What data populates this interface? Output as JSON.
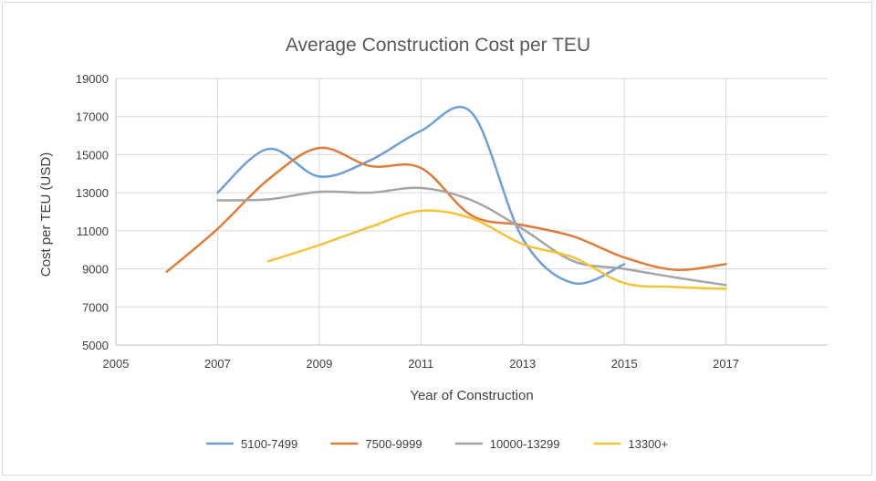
{
  "chart_data": {
    "type": "line",
    "title": "Average Construction Cost per TEU",
    "xlabel": "Year of Construction",
    "ylabel": "Cost per TEU (USD)",
    "xlim": [
      2005,
      2019
    ],
    "ylim": [
      5000,
      19000
    ],
    "x_ticks": [
      2005,
      2007,
      2009,
      2011,
      2013,
      2015,
      2017
    ],
    "y_ticks": [
      5000,
      7000,
      9000,
      11000,
      13000,
      15000,
      17000,
      19000
    ],
    "grid": "vertical and horizontal major gridlines",
    "legend_position": "bottom",
    "series": [
      {
        "name": "5100-7499",
        "color": "#6f9fd8",
        "points": [
          [
            2007,
            13000
          ],
          [
            2008,
            15300
          ],
          [
            2009,
            13850
          ],
          [
            2010,
            14700
          ],
          [
            2011,
            16250
          ],
          [
            2012,
            17200
          ],
          [
            2013,
            10600
          ],
          [
            2014,
            8250
          ],
          [
            2015,
            9250
          ]
        ]
      },
      {
        "name": "7500-9999",
        "color": "#e07b39",
        "points": [
          [
            2006,
            8850
          ],
          [
            2007,
            11100
          ],
          [
            2008,
            13700
          ],
          [
            2009,
            15350
          ],
          [
            2010,
            14400
          ],
          [
            2011,
            14300
          ],
          [
            2012,
            11800
          ],
          [
            2013,
            11300
          ],
          [
            2014,
            10700
          ],
          [
            2015,
            9600
          ],
          [
            2016,
            8950
          ],
          [
            2017,
            9250
          ]
        ]
      },
      {
        "name": "10000-13299",
        "color": "#a5a5a5",
        "points": [
          [
            2007,
            12600
          ],
          [
            2008,
            12650
          ],
          [
            2009,
            13050
          ],
          [
            2010,
            13000
          ],
          [
            2011,
            13250
          ],
          [
            2012,
            12600
          ],
          [
            2013,
            11100
          ],
          [
            2014,
            9400
          ],
          [
            2015,
            9000
          ],
          [
            2016,
            8550
          ],
          [
            2017,
            8150
          ]
        ]
      },
      {
        "name": "13300+",
        "color": "#f5c338",
        "points": [
          [
            2008,
            9400
          ],
          [
            2009,
            10250
          ],
          [
            2010,
            11200
          ],
          [
            2011,
            12050
          ],
          [
            2012,
            11650
          ],
          [
            2013,
            10300
          ],
          [
            2014,
            9600
          ],
          [
            2015,
            8250
          ],
          [
            2016,
            8050
          ],
          [
            2017,
            7950
          ]
        ]
      }
    ]
  }
}
